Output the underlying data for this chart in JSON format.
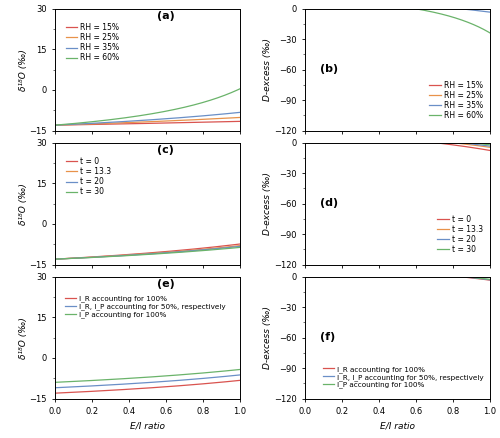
{
  "fig_width": 5.0,
  "fig_height": 4.38,
  "dpi": 100,
  "x_label": "E/I ratio",
  "ylabels_left": [
    "δ¹⁸O (‰)",
    "δ¹⁸O (‰)",
    "δ¹⁸O (‰)"
  ],
  "ylabels_right": [
    "D-excess (‰)",
    "D-excess (‰)",
    "D-excess (‰)"
  ],
  "panel_a": {
    "legend": [
      "RH = 15%",
      "RH = 25%",
      "RH = 35%",
      "RH = 60%"
    ],
    "colors": [
      "#d9534f",
      "#e8924a",
      "#6a8fc7",
      "#6ab36a"
    ],
    "ylim": [
      -15,
      30
    ],
    "yticks": [
      -15,
      0,
      15,
      30
    ],
    "xlim": [
      0.0,
      1.0
    ]
  },
  "panel_b": {
    "legend": [
      "RH = 15%",
      "RH = 25%",
      "RH = 35%",
      "RH = 60%"
    ],
    "colors": [
      "#d9534f",
      "#e8924a",
      "#6a8fc7",
      "#6ab36a"
    ],
    "ylim": [
      -120,
      0
    ],
    "yticks": [
      -120,
      -90,
      -60,
      -30,
      0
    ],
    "xlim": [
      0.0,
      1.0
    ]
  },
  "panel_c": {
    "legend": [
      "t = 0",
      "t = 13.3",
      "t = 20",
      "t = 30"
    ],
    "colors": [
      "#d9534f",
      "#e8924a",
      "#6a8fc7",
      "#6ab36a"
    ],
    "ylim": [
      -15,
      30
    ],
    "yticks": [
      -15,
      0,
      15,
      30
    ],
    "xlim": [
      0.0,
      1.0
    ]
  },
  "panel_d": {
    "legend": [
      "t = 0",
      "t = 13.3",
      "t = 20",
      "t = 30"
    ],
    "colors": [
      "#d9534f",
      "#e8924a",
      "#6a8fc7",
      "#6ab36a"
    ],
    "ylim": [
      -120,
      0
    ],
    "yticks": [
      -120,
      -90,
      -60,
      -30,
      0
    ],
    "xlim": [
      0.0,
      1.0
    ]
  },
  "panel_e": {
    "legend": [
      "I_R accounting for 100%",
      "I_R, I_P accounting for 50%, respectively",
      "I_P accounting for 100%"
    ],
    "colors": [
      "#d9534f",
      "#6a8fc7",
      "#6ab36a"
    ],
    "ylim": [
      -15,
      30
    ],
    "yticks": [
      -15,
      0,
      15,
      30
    ],
    "xlim": [
      0.0,
      1.0
    ]
  },
  "panel_f": {
    "legend": [
      "I_R accounting for 100%",
      "I_R, I_P accounting for 50%, respectively",
      "I_P accounting for 100%"
    ],
    "colors": [
      "#d9534f",
      "#6a8fc7",
      "#6ab36a"
    ],
    "ylim": [
      -120,
      0
    ],
    "yticks": [
      -120,
      -90,
      -60,
      -30,
      0
    ],
    "xlim": [
      0.0,
      1.0
    ]
  },
  "RH_vals": [
    0.15,
    0.25,
    0.35,
    0.6
  ],
  "T_vals": [
    0,
    13.3,
    20,
    30
  ],
  "T_ref": 20,
  "RH_ref": 0.35,
  "delta_I_18O_ref": -13.0,
  "delta_IR_18O": -13.0,
  "delta_IP_18O": -9.0
}
